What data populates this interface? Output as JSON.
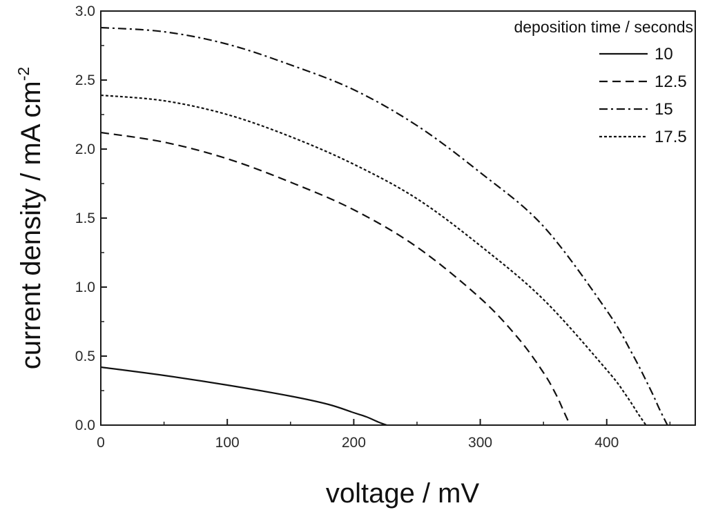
{
  "chart_data": {
    "type": "line",
    "xlabel": "voltage / mV",
    "ylabel": {
      "main": "current density / mA cm",
      "sup": "-2"
    },
    "xlim": [
      0,
      470
    ],
    "ylim": [
      0.0,
      3.0
    ],
    "x_ticks": [
      0,
      100,
      200,
      300,
      400
    ],
    "x_tick_labels": [
      "0",
      "100",
      "200",
      "300",
      "400"
    ],
    "y_ticks": [
      0.0,
      0.5,
      1.0,
      1.5,
      2.0,
      2.5,
      3.0
    ],
    "y_tick_labels": [
      "0.0",
      "0.5",
      "1.0",
      "1.5",
      "2.0",
      "2.5",
      "3.0"
    ],
    "grid": false,
    "legend": {
      "title": "deposition time / seconds",
      "position": "top-right"
    },
    "series": [
      {
        "name": "10",
        "dash": "solid",
        "x": [
          0,
          50,
          100,
          150,
          180,
          200,
          210,
          220,
          226
        ],
        "y": [
          0.42,
          0.36,
          0.29,
          0.21,
          0.15,
          0.09,
          0.06,
          0.02,
          0.0
        ]
      },
      {
        "name": "12.5",
        "dash": "dashed",
        "x": [
          0,
          50,
          100,
          150,
          200,
          250,
          300,
          330,
          350,
          360,
          366,
          371
        ],
        "y": [
          2.12,
          2.05,
          1.93,
          1.76,
          1.56,
          1.29,
          0.92,
          0.63,
          0.38,
          0.22,
          0.1,
          0.0
        ]
      },
      {
        "name": "15",
        "dash": "dashdot",
        "x": [
          0,
          50,
          100,
          150,
          200,
          250,
          300,
          350,
          400,
          420,
          435,
          442,
          448
        ],
        "y": [
          2.88,
          2.85,
          2.76,
          2.61,
          2.43,
          2.17,
          1.83,
          1.44,
          0.83,
          0.52,
          0.25,
          0.11,
          0.0
        ]
      },
      {
        "name": "17.5",
        "dash": "dotted",
        "x": [
          0,
          50,
          100,
          150,
          200,
          250,
          300,
          350,
          400,
          415,
          425,
          431
        ],
        "y": [
          2.39,
          2.35,
          2.25,
          2.09,
          1.89,
          1.64,
          1.3,
          0.91,
          0.4,
          0.22,
          0.08,
          0.0
        ]
      }
    ]
  }
}
